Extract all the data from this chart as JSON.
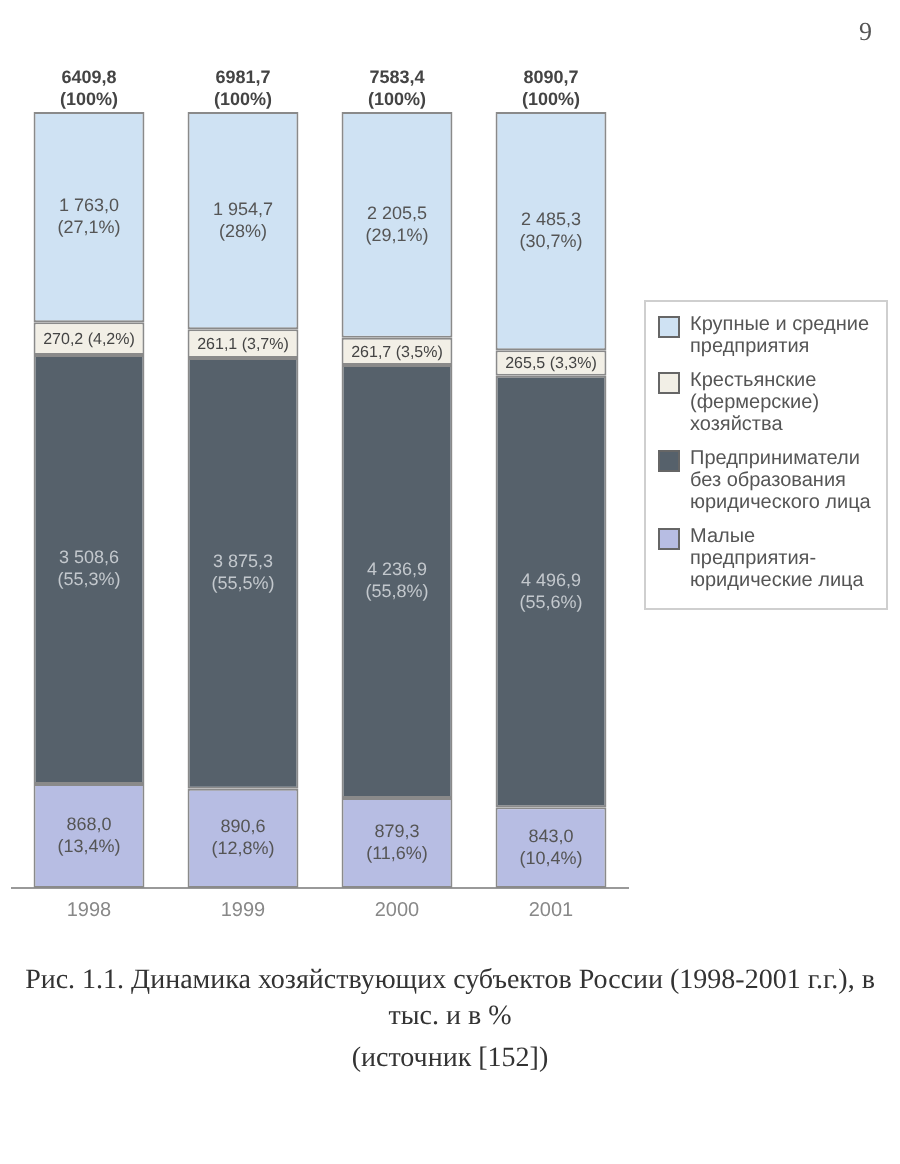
{
  "chart_data": {
    "type": "bar",
    "stacked": true,
    "legend": "right",
    "title": "Рис. 1.1. Динамика хозяйствующих субъектов России (1998-2001 г.г.), в тыс. и в %",
    "subtitle": "(источник [152])",
    "annotations": [
      "9"
    ],
    "categories": [
      "1998",
      "1999",
      "2000",
      "2001"
    ],
    "series": [
      {
        "name": "Малые предприятия-юридические лица",
        "color": "#b7bde3",
        "values": [
          13.4,
          12.8,
          11.6,
          10.4
        ],
        "value_labels": [
          "868,0 (13,4%)",
          "890,6 (12,8%)",
          "879,3 (11,6%)",
          "843,0 (10,4%)"
        ]
      },
      {
        "name": "Предприниматели без образования юридического лица",
        "color": "#56616b",
        "values": [
          55.3,
          55.5,
          55.8,
          55.6
        ],
        "value_labels": [
          "3 508,6 (55,3%)",
          "3 875,3 (55,5%)",
          "4 236,9 (55,8%)",
          "4 496,9 (55,6%)"
        ]
      },
      {
        "name": "Крестьянские (фермерские) хозяйства",
        "color": "#f2efe6",
        "values": [
          4.2,
          3.7,
          3.5,
          3.3
        ],
        "value_labels": [
          "270,2 (4,2%)",
          "261,1 (3,7%)",
          "261,7 (3,5%)",
          "265,5 (3,3%)"
        ]
      },
      {
        "name": "Крупные и средние предприятия",
        "color": "#cfe2f3",
        "values": [
          27.1,
          28,
          29.1,
          30.7
        ],
        "value_labels": [
          "1 763,0 (27,1%)",
          "1 954,7 (28%)",
          "2 205,5 (29,1%)",
          "2 485,3 (30,7%)"
        ]
      }
    ],
    "totals": [
      "6409,8 (100%)",
      "6981,7 (100%)",
      "7583,4 (100%)",
      "8090,7 (100%)"
    ]
  }
}
